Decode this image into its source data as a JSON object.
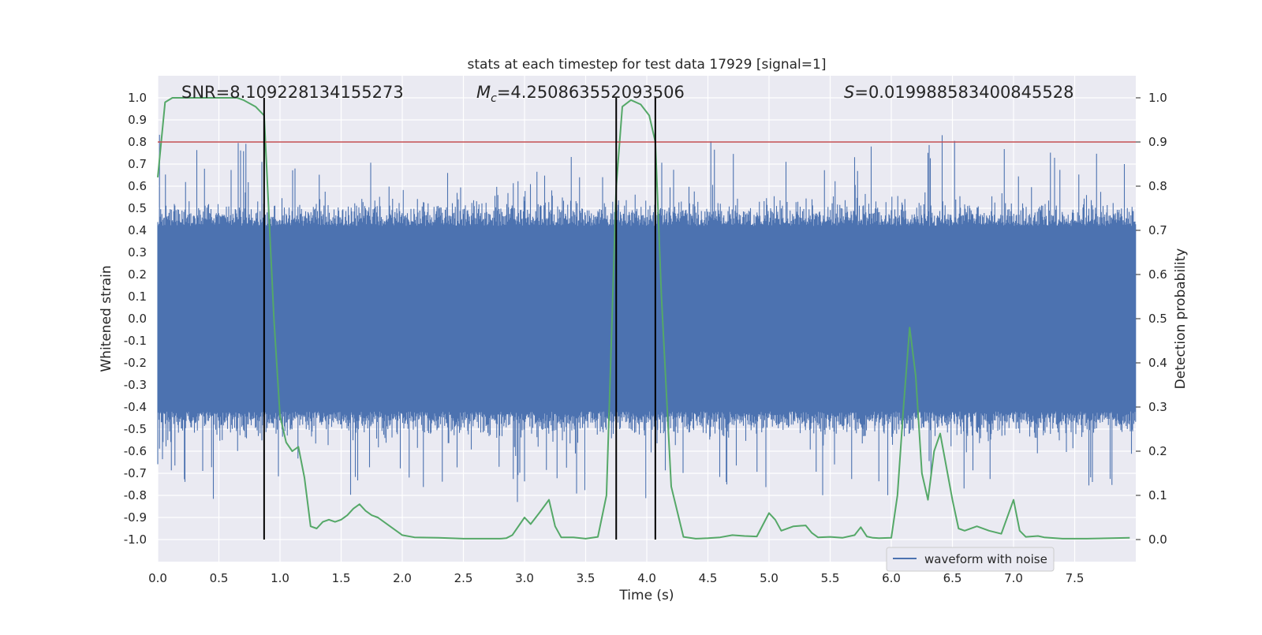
{
  "chart_data": {
    "type": "line",
    "title": "stats at each timestep for test data 17929 [signal=1]",
    "xlabel": "Time (s)",
    "ylabel_left": "Whitened strain",
    "ylabel_right": "Detection probability",
    "xlim": [
      0.0,
      8.0
    ],
    "ylim_left": [
      -1.1,
      1.1
    ],
    "ylim_right": [
      -0.05,
      1.05
    ],
    "xticks": [
      "0.0",
      "0.5",
      "1.0",
      "1.5",
      "2.0",
      "2.5",
      "3.0",
      "3.5",
      "4.0",
      "4.5",
      "5.0",
      "5.5",
      "6.0",
      "6.5",
      "7.0",
      "7.5"
    ],
    "yticks_left": [
      "1.0",
      "0.9",
      "0.8",
      "0.7",
      "0.6",
      "0.5",
      "0.4",
      "0.3",
      "0.2",
      "0.1",
      "0.0",
      "-0.1",
      "-0.2",
      "-0.3",
      "-0.4",
      "-0.5",
      "-0.6",
      "-0.7",
      "-0.8",
      "-0.9",
      "-1.0"
    ],
    "yticks_right": [
      "1.0",
      "0.9",
      "0.8",
      "0.7",
      "0.6",
      "0.5",
      "0.4",
      "0.3",
      "0.2",
      "0.1",
      "0.0"
    ],
    "annotations": {
      "snr": "SNR=8.109228134155273",
      "mc": "=4.250863552093506",
      "mc_symbol": "M",
      "mc_sub": "c",
      "s": "=0.019988583400845528",
      "s_symbol": "S"
    },
    "legend": {
      "label": "waveform with noise",
      "position": "lower-center"
    },
    "threshold_right": 0.9,
    "vlines_x": [
      0.87,
      3.75,
      4.07
    ],
    "series": [
      {
        "name": "waveform with noise",
        "axis": "left",
        "color": "#4c72b0",
        "noise_sigma": 0.25,
        "core_amplitude": 0.42,
        "seed": 17929
      },
      {
        "name": "detection probability",
        "axis": "right",
        "color": "#55a868",
        "x": [
          0.0,
          0.06,
          0.12,
          0.25,
          0.4,
          0.55,
          0.65,
          0.7,
          0.8,
          0.87,
          0.95,
          1.0,
          1.05,
          1.1,
          1.15,
          1.2,
          1.25,
          1.3,
          1.35,
          1.4,
          1.45,
          1.5,
          1.55,
          1.6,
          1.65,
          1.7,
          1.75,
          1.8,
          1.9,
          1.95,
          2.0,
          2.1,
          2.3,
          2.5,
          2.6,
          2.8,
          2.85,
          2.9,
          3.0,
          3.05,
          3.12,
          3.2,
          3.25,
          3.3,
          3.4,
          3.5,
          3.6,
          3.67,
          3.75,
          3.8,
          3.87,
          3.95,
          4.02,
          4.07,
          4.12,
          4.2,
          4.3,
          4.4,
          4.5,
          4.6,
          4.7,
          4.8,
          4.9,
          5.0,
          5.05,
          5.1,
          5.2,
          5.3,
          5.35,
          5.4,
          5.5,
          5.6,
          5.7,
          5.75,
          5.8,
          5.85,
          5.9,
          6.0,
          6.05,
          6.1,
          6.15,
          6.2,
          6.25,
          6.3,
          6.35,
          6.4,
          6.5,
          6.55,
          6.6,
          6.7,
          6.8,
          6.9,
          7.0,
          7.05,
          7.1,
          7.2,
          7.25,
          7.4,
          7.6,
          7.8,
          7.95
        ],
        "values": [
          0.82,
          0.99,
          1.0,
          1.0,
          1.0,
          1.0,
          1.0,
          0.995,
          0.98,
          0.96,
          0.5,
          0.28,
          0.22,
          0.2,
          0.21,
          0.14,
          0.03,
          0.025,
          0.04,
          0.045,
          0.04,
          0.045,
          0.055,
          0.07,
          0.08,
          0.065,
          0.055,
          0.05,
          0.03,
          0.02,
          0.01,
          0.005,
          0.004,
          0.002,
          0.002,
          0.002,
          0.003,
          0.01,
          0.05,
          0.035,
          0.06,
          0.09,
          0.03,
          0.005,
          0.005,
          0.002,
          0.006,
          0.1,
          0.8,
          0.98,
          0.995,
          0.985,
          0.96,
          0.9,
          0.55,
          0.12,
          0.006,
          0.002,
          0.003,
          0.005,
          0.01,
          0.008,
          0.007,
          0.06,
          0.045,
          0.02,
          0.03,
          0.032,
          0.015,
          0.005,
          0.006,
          0.004,
          0.01,
          0.028,
          0.007,
          0.004,
          0.003,
          0.004,
          0.1,
          0.3,
          0.48,
          0.37,
          0.15,
          0.09,
          0.2,
          0.24,
          0.09,
          0.025,
          0.02,
          0.03,
          0.02,
          0.013,
          0.09,
          0.02,
          0.006,
          0.008,
          0.005,
          0.002,
          0.002,
          0.003,
          0.004
        ]
      }
    ]
  }
}
